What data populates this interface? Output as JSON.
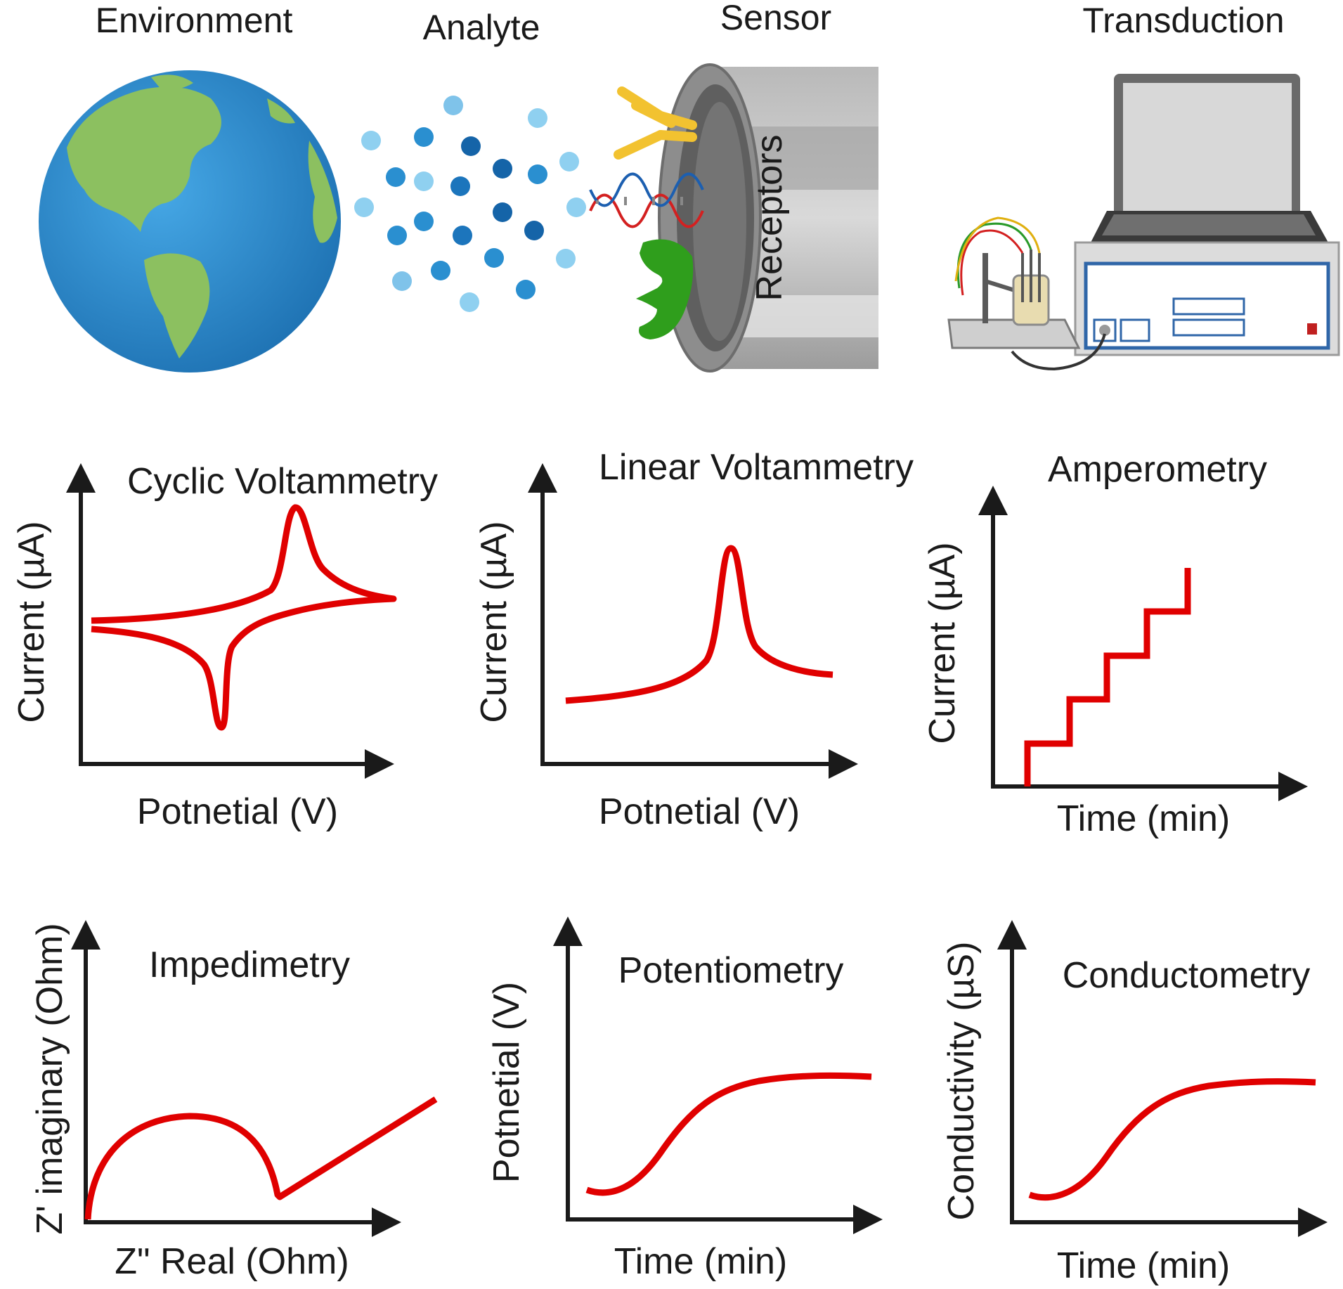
{
  "top_row": {
    "environment": "Environment",
    "analyte": "Analyte",
    "sensor": "Sensor",
    "transduction": "Transduction",
    "receptors": "Receptors"
  },
  "techniques": {
    "cv": {
      "title": "Cyclic Voltammetry",
      "xlabel": "Potnetial (V)",
      "ylabel": "Current (µA)"
    },
    "lsv": {
      "title": "Linear Voltammetry",
      "xlabel": "Potnetial (V)",
      "ylabel": "Current (µA)"
    },
    "amp": {
      "title": "Amperometry",
      "xlabel": "Time (min)",
      "ylabel": "Current (µA)"
    },
    "eis": {
      "title": "Impedimetry",
      "xlabel": "Z\" Real (Ohm)",
      "ylabel": "Z' imaginary (Ohm)"
    },
    "pot": {
      "title": "Potentiometry",
      "xlabel": "Time (min)",
      "ylabel": "Potnetial (V)"
    },
    "cond": {
      "title": "Conductometry",
      "xlabel": "Time (min)",
      "ylabel": "Conductivity (µS)"
    }
  },
  "colors": {
    "curve": "#e00000",
    "axis": "#1a1a1a",
    "ocean": "#2a8fd0",
    "land": "#8cc060",
    "antibody": "#f2c230",
    "receptor_green": "#2f9e1c"
  }
}
